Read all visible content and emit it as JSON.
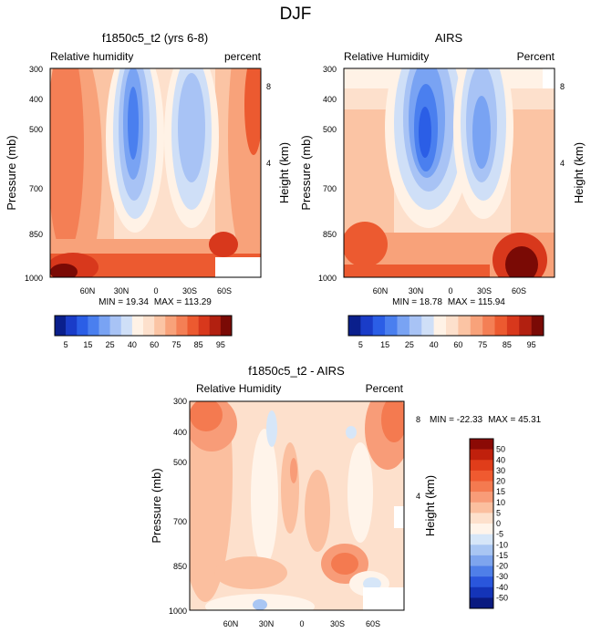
{
  "figure_title": "DJF",
  "chart_data": [
    {
      "type": "heatmap",
      "title": "f1850c5_t2 (yrs 6-8)",
      "left_label": "Relative humidity",
      "right_label": "percent",
      "ylabel": "Pressure (mb)",
      "y2label": "Height (km)",
      "x_ticks": [
        "60N",
        "30N",
        "0",
        "30S",
        "60S"
      ],
      "y_ticks": [
        300,
        400,
        500,
        700,
        850,
        1000
      ],
      "height_ticks": [
        8,
        4
      ],
      "stats_min_label": "MIN = ",
      "stats_min": "19.34",
      "stats_max_label": "MAX = ",
      "stats_max": "113.29",
      "legend": {
        "labels": [
          "5",
          "15",
          "25",
          "40",
          "60",
          "75",
          "85",
          "95"
        ],
        "colors": [
          "#0a1f8c",
          "#1a3cc8",
          "#2b5ee6",
          "#4a7fef",
          "#79a3f3",
          "#a8c3f5",
          "#cfdff7",
          "#fff2e6",
          "#fde0cc",
          "#fbc4a4",
          "#f8a27a",
          "#f47f55",
          "#ec5a30",
          "#d8381c",
          "#b22010",
          "#7a0a05"
        ]
      }
    },
    {
      "type": "heatmap",
      "title": "AIRS",
      "left_label": "Relative Humidity",
      "right_label": "Percent",
      "ylabel": "Pressure (mb)",
      "y2label": "Height (km)",
      "x_ticks": [
        "60N",
        "30N",
        "0",
        "30S",
        "60S"
      ],
      "y_ticks": [
        300,
        400,
        500,
        700,
        850,
        1000
      ],
      "height_ticks": [
        8,
        4
      ],
      "stats_min_label": "MIN = ",
      "stats_min": "18.78",
      "stats_max_label": "MAX = ",
      "stats_max": "115.94",
      "legend": {
        "labels": [
          "5",
          "15",
          "25",
          "40",
          "60",
          "75",
          "85",
          "95"
        ],
        "colors": [
          "#0a1f8c",
          "#1a3cc8",
          "#2b5ee6",
          "#4a7fef",
          "#79a3f3",
          "#a8c3f5",
          "#cfdff7",
          "#fff2e6",
          "#fde0cc",
          "#fbc4a4",
          "#f8a27a",
          "#f47f55",
          "#ec5a30",
          "#d8381c",
          "#b22010",
          "#7a0a05"
        ]
      }
    },
    {
      "type": "heatmap",
      "title": "f1850c5_t2 - AIRS",
      "left_label": "Relative Humidity",
      "right_label": "Percent",
      "ylabel": "Pressure (mb)",
      "y2label": "Height (km)",
      "x_ticks": [
        "60N",
        "30N",
        "0",
        "30S",
        "60S"
      ],
      "y_ticks": [
        300,
        400,
        500,
        700,
        850,
        1000
      ],
      "height_ticks": [
        8,
        4
      ],
      "stats_min_label": "MIN = ",
      "stats_min": "-22.33",
      "stats_max_label": "MAX = ",
      "stats_max": "45.31",
      "legend": {
        "labels": [
          "50",
          "40",
          "30",
          "20",
          "15",
          "10",
          "5",
          "0",
          "-5",
          "-10",
          "-15",
          "-20",
          "-30",
          "-40",
          "-50"
        ],
        "colors": [
          "#8b0a05",
          "#c0200c",
          "#e03d1a",
          "#f05a30",
          "#f47a50",
          "#f89c78",
          "#fbbf9f",
          "#fde0cc",
          "#fff4ea",
          "#d6e6f8",
          "#a9c6f3",
          "#7ea5ee",
          "#4f7fe8",
          "#2a56dc",
          "#1434b8",
          "#0a1a80"
        ]
      }
    }
  ]
}
